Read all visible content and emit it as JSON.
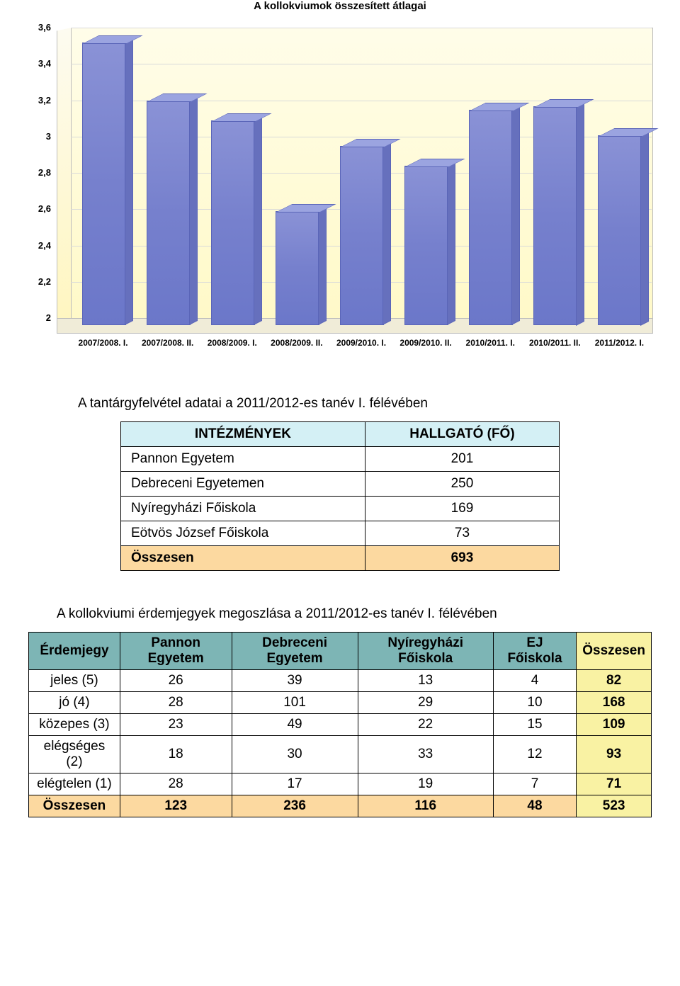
{
  "chart": {
    "title": "A kollokviumok összesített átlagai",
    "type": "bar",
    "ymin": 2.0,
    "ymax": 3.6,
    "ystep": 0.2,
    "yticks": [
      "2",
      "2,2",
      "2,4",
      "2,6",
      "2,8",
      "3",
      "3,2",
      "3,4",
      "3,6"
    ],
    "categories": [
      "2007/2008. I.",
      "2007/2008. II.",
      "2008/2009. I.",
      "2008/2009. II.",
      "2009/2010. I.",
      "2009/2010. II.",
      "2010/2011. I.",
      "2010/2011. II.",
      "2011/2012. I."
    ],
    "values": [
      3.55,
      3.23,
      3.12,
      2.62,
      2.98,
      2.87,
      3.18,
      3.2,
      3.04
    ],
    "bar_color": "#7680cd",
    "bar_top_color": "#9ba4e0",
    "bar_side_color": "#6670bd",
    "background_color": "#fffde9",
    "grid_color": "#d9d9d9"
  },
  "table1": {
    "title": "A tantárgyfelvétel adatai a 2011/2012-es tanév I. félévében",
    "headers": [
      "INTÉZMÉNYEK",
      "HALLGATÓ (FŐ)"
    ],
    "rows": [
      [
        "Pannon Egyetem",
        "201"
      ],
      [
        "Debreceni Egyetemen",
        "250"
      ],
      [
        "Nyíregyházi Főiskola",
        "169"
      ],
      [
        "Eötvös József Főiskola",
        "73"
      ]
    ],
    "total": [
      "Összesen",
      "693"
    ]
  },
  "table2": {
    "title": "A kollokviumi érdemjegyek megoszlása a 2011/2012-es tanév I. félévében",
    "headers": [
      "Érdemjegy",
      "Pannon Egyetem",
      "Debreceni Egyetem",
      "Nyíregyházi Főiskola",
      "EJ Főiskola",
      "Összesen"
    ],
    "rows": [
      [
        "jeles (5)",
        "26",
        "39",
        "13",
        "4",
        "82"
      ],
      [
        "jó (4)",
        "28",
        "101",
        "29",
        "10",
        "168"
      ],
      [
        "közepes (3)",
        "23",
        "49",
        "22",
        "15",
        "109"
      ],
      [
        "elégséges (2)",
        "18",
        "30",
        "33",
        "12",
        "93"
      ],
      [
        "elégtelen (1)",
        "28",
        "17",
        "19",
        "7",
        "71"
      ]
    ],
    "total": [
      "Összesen",
      "123",
      "236",
      "116",
      "48",
      "523"
    ]
  }
}
